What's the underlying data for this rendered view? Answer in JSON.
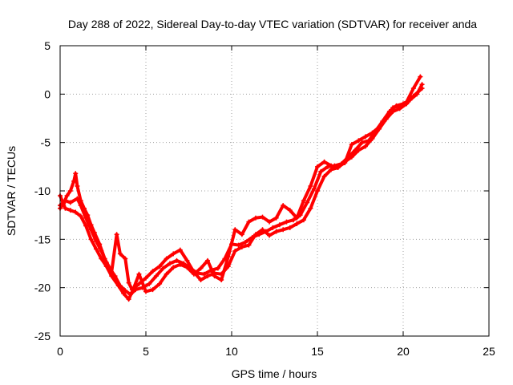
{
  "chart_data": {
    "type": "scatter",
    "title": "Day 288 of 2022, Sidereal Day-to-day VTEC variation (SDTVAR) for receiver anda",
    "xlabel": "GPS time / hours",
    "ylabel": "SDTVAR / TECUs",
    "xlim": [
      0,
      25
    ],
    "ylim": [
      -25,
      5
    ],
    "xticks": [
      0,
      5,
      10,
      15,
      20,
      25
    ],
    "yticks": [
      -25,
      -20,
      -15,
      -10,
      -5,
      0,
      5
    ],
    "grid": true,
    "marker": "+",
    "colors": {
      "series": "#ff0000",
      "grid": "#a0a0a0",
      "axis": "#000000"
    },
    "series": [
      {
        "values": [
          [
            0.0,
            -11.8
          ],
          [
            0.2,
            -11.3
          ],
          [
            0.4,
            -10.5
          ],
          [
            0.6,
            -10.0
          ],
          [
            0.8,
            -9.0
          ],
          [
            0.9,
            -8.2
          ],
          [
            1.0,
            -9.5
          ],
          [
            1.2,
            -11.0
          ],
          [
            1.4,
            -11.8
          ],
          [
            1.6,
            -12.5
          ],
          [
            1.8,
            -13.5
          ],
          [
            2.0,
            -14.3
          ],
          [
            2.3,
            -15.5
          ],
          [
            2.6,
            -17.0
          ],
          [
            2.9,
            -18.0
          ],
          [
            3.2,
            -18.8
          ],
          [
            3.5,
            -19.8
          ],
          [
            3.8,
            -20.3
          ],
          [
            4.1,
            -20.7
          ],
          [
            4.4,
            -20.2
          ],
          [
            4.8,
            -20.0
          ],
          [
            5.2,
            -19.6
          ],
          [
            5.6,
            -18.8
          ],
          [
            6.0,
            -18.0
          ],
          [
            6.4,
            -17.5
          ],
          [
            6.8,
            -17.2
          ],
          [
            7.2,
            -17.5
          ],
          [
            7.6,
            -18.0
          ],
          [
            8.0,
            -18.5
          ],
          [
            8.4,
            -18.6
          ],
          [
            8.8,
            -18.2
          ],
          [
            9.2,
            -18.0
          ],
          [
            9.6,
            -17.0
          ],
          [
            10.0,
            -15.5
          ],
          [
            10.4,
            -15.6
          ],
          [
            10.8,
            -15.3
          ],
          [
            11.2,
            -14.8
          ],
          [
            11.6,
            -14.5
          ],
          [
            12.0,
            -14.2
          ],
          [
            12.4,
            -13.8
          ],
          [
            12.8,
            -13.5
          ],
          [
            13.2,
            -13.2
          ],
          [
            13.6,
            -13.0
          ],
          [
            14.0,
            -12.5
          ],
          [
            14.4,
            -11.2
          ],
          [
            14.8,
            -9.8
          ],
          [
            15.2,
            -8.0
          ],
          [
            15.6,
            -7.5
          ],
          [
            16.0,
            -7.4
          ],
          [
            16.4,
            -7.2
          ],
          [
            16.8,
            -6.5
          ],
          [
            17.2,
            -5.8
          ],
          [
            17.6,
            -5.0
          ],
          [
            18.0,
            -4.8
          ],
          [
            18.4,
            -3.8
          ],
          [
            18.8,
            -2.8
          ],
          [
            19.2,
            -1.8
          ],
          [
            19.6,
            -1.2
          ],
          [
            20.0,
            -1.0
          ],
          [
            20.4,
            -0.6
          ],
          [
            20.8,
            0.0
          ],
          [
            21.1,
            1.0
          ]
        ]
      },
      {
        "values": [
          [
            0.0,
            -11.5
          ],
          [
            0.3,
            -11.0
          ],
          [
            0.6,
            -11.2
          ],
          [
            1.0,
            -10.8
          ],
          [
            1.2,
            -11.5
          ],
          [
            1.5,
            -12.8
          ],
          [
            1.8,
            -14.0
          ],
          [
            2.1,
            -15.2
          ],
          [
            2.4,
            -16.2
          ],
          [
            2.7,
            -17.4
          ],
          [
            3.0,
            -18.4
          ],
          [
            3.3,
            -14.5
          ],
          [
            3.5,
            -16.5
          ],
          [
            3.8,
            -17.0
          ],
          [
            4.0,
            -19.5
          ],
          [
            4.2,
            -20.2
          ],
          [
            4.6,
            -19.6
          ],
          [
            5.0,
            -19.0
          ],
          [
            5.4,
            -18.3
          ],
          [
            5.8,
            -17.8
          ],
          [
            6.2,
            -17.0
          ],
          [
            6.6,
            -16.5
          ],
          [
            7.0,
            -16.1
          ],
          [
            7.4,
            -17.2
          ],
          [
            7.8,
            -18.4
          ],
          [
            8.2,
            -19.2
          ],
          [
            8.6,
            -18.8
          ],
          [
            9.0,
            -18.5
          ],
          [
            9.4,
            -18.6
          ],
          [
            9.8,
            -17.8
          ],
          [
            10.2,
            -16.2
          ],
          [
            10.6,
            -15.8
          ],
          [
            11.0,
            -15.6
          ],
          [
            11.4,
            -14.5
          ],
          [
            11.8,
            -14.0
          ],
          [
            12.2,
            -14.6
          ],
          [
            12.6,
            -14.2
          ],
          [
            13.0,
            -14.0
          ],
          [
            13.4,
            -13.8
          ],
          [
            13.8,
            -13.4
          ],
          [
            14.2,
            -13.0
          ],
          [
            14.6,
            -11.8
          ],
          [
            15.0,
            -10.0
          ],
          [
            15.4,
            -8.5
          ],
          [
            15.8,
            -7.8
          ],
          [
            16.2,
            -7.6
          ],
          [
            16.6,
            -7.0
          ],
          [
            17.0,
            -6.5
          ],
          [
            17.4,
            -5.8
          ],
          [
            17.8,
            -5.4
          ],
          [
            18.2,
            -4.6
          ],
          [
            18.6,
            -3.6
          ],
          [
            19.0,
            -2.6
          ],
          [
            19.4,
            -1.8
          ],
          [
            19.8,
            -1.5
          ],
          [
            20.2,
            -1.0
          ],
          [
            20.6,
            -0.2
          ],
          [
            21.1,
            0.6
          ]
        ]
      },
      {
        "values": [
          [
            0.0,
            -10.5
          ],
          [
            0.3,
            -11.8
          ],
          [
            0.6,
            -12.0
          ],
          [
            0.9,
            -12.2
          ],
          [
            1.2,
            -12.6
          ],
          [
            1.5,
            -13.6
          ],
          [
            1.8,
            -15.0
          ],
          [
            2.1,
            -16.0
          ],
          [
            2.4,
            -17.0
          ],
          [
            2.7,
            -17.8
          ],
          [
            3.0,
            -18.8
          ],
          [
            3.4,
            -19.8
          ],
          [
            3.7,
            -20.6
          ],
          [
            4.0,
            -21.2
          ],
          [
            4.3,
            -20.0
          ],
          [
            4.6,
            -18.6
          ],
          [
            5.0,
            -20.4
          ],
          [
            5.4,
            -20.2
          ],
          [
            5.8,
            -19.6
          ],
          [
            6.2,
            -18.6
          ],
          [
            6.6,
            -17.9
          ],
          [
            7.0,
            -17.6
          ],
          [
            7.4,
            -17.9
          ],
          [
            7.8,
            -18.6
          ],
          [
            8.2,
            -18.0
          ],
          [
            8.6,
            -17.2
          ],
          [
            9.0,
            -18.8
          ],
          [
            9.4,
            -19.2
          ],
          [
            9.8,
            -16.8
          ],
          [
            10.2,
            -14.0
          ],
          [
            10.6,
            -14.5
          ],
          [
            11.0,
            -13.2
          ],
          [
            11.4,
            -12.8
          ],
          [
            11.8,
            -12.7
          ],
          [
            12.2,
            -13.2
          ],
          [
            12.6,
            -12.8
          ],
          [
            13.0,
            -11.5
          ],
          [
            13.4,
            -12.0
          ],
          [
            13.8,
            -12.8
          ],
          [
            14.2,
            -11.0
          ],
          [
            14.6,
            -9.5
          ],
          [
            15.0,
            -7.5
          ],
          [
            15.4,
            -7.0
          ],
          [
            15.8,
            -7.4
          ],
          [
            16.2,
            -7.5
          ],
          [
            16.6,
            -7.1
          ],
          [
            17.0,
            -5.2
          ],
          [
            17.4,
            -4.8
          ],
          [
            17.8,
            -4.4
          ],
          [
            18.2,
            -4.0
          ],
          [
            18.6,
            -3.4
          ],
          [
            19.0,
            -2.4
          ],
          [
            19.4,
            -1.4
          ],
          [
            19.8,
            -1.2
          ],
          [
            20.2,
            -0.8
          ],
          [
            20.6,
            0.6
          ],
          [
            21.0,
            1.8
          ]
        ]
      }
    ]
  }
}
